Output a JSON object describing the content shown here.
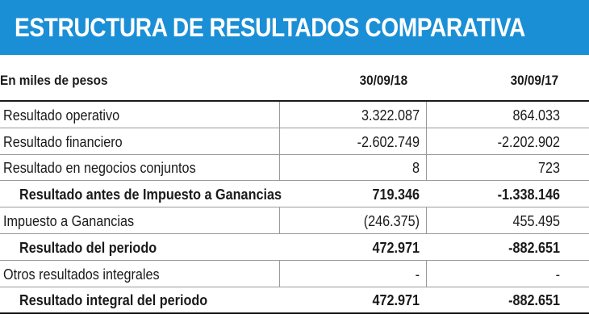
{
  "header": {
    "title": "ESTRUCTURA DE RESULTADOS COMPARATIVA"
  },
  "columns": {
    "label": "En miles de pesos",
    "year1": "30/09/18",
    "year2": "30/09/17"
  },
  "rows": [
    {
      "label": "Resultado operativo",
      "v1": "3.322.087",
      "v2": "864.033",
      "bold": false
    },
    {
      "label": "Resultado financiero",
      "v1": "-2.602.749",
      "v2": "-2.202.902",
      "bold": false
    },
    {
      "label": "Resultado en negocios conjuntos",
      "v1": "8",
      "v2": "723",
      "bold": false
    },
    {
      "label": "Resultado antes de Impuesto a Ganancias",
      "v1": "719.346",
      "v2": "-1.338.146",
      "bold": true
    },
    {
      "label": "Impuesto a Ganancias",
      "v1": "(246.375)",
      "v2": "455.495",
      "bold": false
    },
    {
      "label": "Resultado del periodo",
      "v1": "472.971",
      "v2": "-882.651",
      "bold": true
    },
    {
      "label": "Otros resultados integrales",
      "v1": "-",
      "v2": "-",
      "bold": false
    },
    {
      "label": "Resultado integral del periodo",
      "v1": "472.971",
      "v2": "-882.651",
      "bold": true
    }
  ]
}
